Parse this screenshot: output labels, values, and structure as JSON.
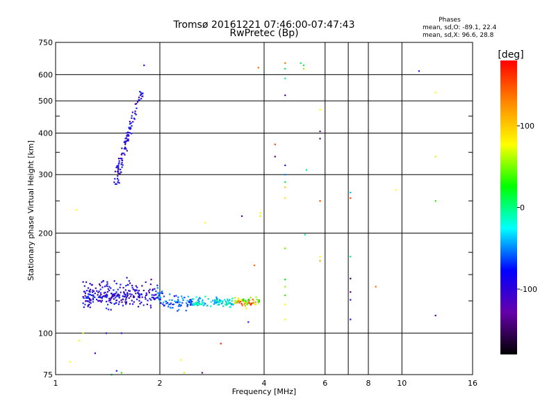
{
  "chart_data": {
    "type": "scatter",
    "title": "Tromsø 20161221 07:46:00-07:47:43",
    "subtitle": "RwPretec (Bp)",
    "xlabel": "Frequency [MHz]",
    "ylabel": "Stationary phase Virtual Height [km]",
    "x_scale": "log",
    "y_scale": "log",
    "xlim": [
      1,
      16
    ],
    "ylim": [
      75,
      750
    ],
    "x_ticks": [
      1,
      2,
      4,
      6,
      8,
      10,
      16
    ],
    "x_gridlines": [
      2,
      4,
      6,
      7,
      8,
      10
    ],
    "y_ticks": [
      75,
      100,
      200,
      300,
      400,
      500,
      600,
      750
    ],
    "grid": true,
    "stats": {
      "header": "Phases",
      "line_o": "mean, sd,O: -89.1, 22.4",
      "line_x": "mean, sd,X:  96.6, 28.8"
    },
    "colorbar": {
      "label": "[deg]",
      "range": [
        -180,
        180
      ],
      "ticks": [
        100,
        0,
        -100
      ],
      "colors": [
        "#ff0000",
        "#ff8800",
        "#ffff00",
        "#00ff00",
        "#00ffff",
        "#0000ff",
        "#6600aa",
        "#000000"
      ]
    },
    "points": [
      [
        1.8,
        640,
        -110
      ],
      [
        4.6,
        650,
        150
      ],
      [
        5.1,
        650,
        30
      ],
      [
        5.2,
        640,
        30
      ],
      [
        3.85,
        630,
        150
      ],
      [
        5.2,
        625,
        80
      ],
      [
        4.6,
        625,
        30
      ],
      [
        11.2,
        615,
        -100
      ],
      [
        4.6,
        585,
        20
      ],
      [
        4.6,
        520,
        -130
      ],
      [
        5.8,
        470,
        100
      ],
      [
        5.8,
        405,
        -140
      ],
      [
        5.8,
        385,
        -140
      ],
      [
        12.5,
        530,
        100
      ],
      [
        4.3,
        370,
        160
      ],
      [
        4.3,
        340,
        -140
      ],
      [
        4.6,
        320,
        -100
      ],
      [
        5.3,
        310,
        20
      ],
      [
        4.6,
        300,
        -60
      ],
      [
        4.6,
        285,
        30
      ],
      [
        4.6,
        275,
        120
      ],
      [
        4.6,
        255,
        110
      ],
      [
        5.8,
        250,
        160
      ],
      [
        7.1,
        265,
        -30
      ],
      [
        7.1,
        255,
        160
      ],
      [
        9.6,
        270,
        100
      ],
      [
        12.5,
        340,
        90
      ],
      [
        12.5,
        250,
        60
      ],
      [
        1.15,
        235,
        100
      ],
      [
        2.7,
        215,
        100
      ],
      [
        3.45,
        225,
        -140
      ],
      [
        3.9,
        230,
        100
      ],
      [
        3.9,
        225,
        110
      ],
      [
        5.25,
        198,
        20
      ],
      [
        4.6,
        180,
        70
      ],
      [
        5.8,
        170,
        100
      ],
      [
        5.8,
        165,
        130
      ],
      [
        7.1,
        170,
        20
      ],
      [
        3.75,
        160,
        150
      ],
      [
        4.6,
        145,
        50
      ],
      [
        4.6,
        138,
        80
      ],
      [
        4.6,
        130,
        60
      ],
      [
        4.6,
        122,
        100
      ],
      [
        4.6,
        110,
        100
      ],
      [
        3.6,
        108,
        -100
      ],
      [
        7.1,
        146,
        -160
      ],
      [
        7.1,
        133,
        -140
      ],
      [
        7.1,
        126,
        -120
      ],
      [
        7.1,
        110,
        -120
      ],
      [
        8.4,
        138,
        150
      ],
      [
        12.5,
        113,
        -130
      ],
      [
        1.17,
        95,
        100
      ],
      [
        1.3,
        87,
        -130
      ],
      [
        2.3,
        83,
        100
      ],
      [
        3.0,
        93,
        170
      ],
      [
        1.1,
        82,
        100
      ],
      [
        1.5,
        77,
        -100
      ],
      [
        1.55,
        76,
        60
      ],
      [
        1.45,
        75,
        30
      ],
      [
        2.35,
        76,
        90
      ],
      [
        2.65,
        76,
        -140
      ],
      [
        1.2,
        100,
        90
      ],
      [
        1.4,
        100,
        -120
      ],
      [
        1.55,
        100,
        -100
      ]
    ],
    "cluster_low": {
      "x_range": [
        1.2,
        3.9
      ],
      "y_center": 124,
      "n": 520
    },
    "cluster_high": {
      "x_range": [
        1.5,
        1.8
      ],
      "y_range": [
        280,
        560
      ],
      "n": 110,
      "phase_range": [
        -140,
        -85
      ]
    }
  }
}
